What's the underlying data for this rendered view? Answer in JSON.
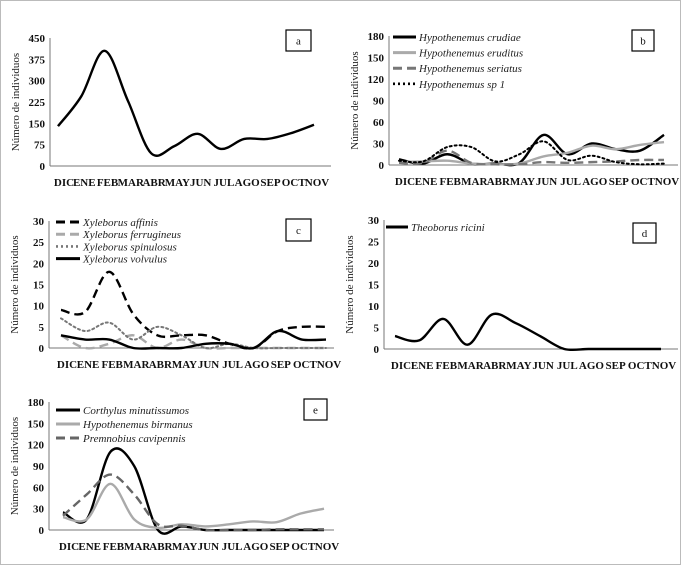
{
  "chart_data": [
    {
      "id": "a",
      "type": "line",
      "panel_label": "a",
      "ylabel": "Número de individuos",
      "ylim": [
        0,
        450
      ],
      "yticks": [
        0,
        75,
        150,
        225,
        300,
        375,
        450
      ],
      "categories": [
        "DIC",
        "ENE",
        "FEB",
        "MAR",
        "ABR",
        "MAY",
        "JUN",
        "JUL",
        "AGO",
        "SEP",
        "OCT",
        "NOV"
      ],
      "series": [
        {
          "values": [
            140,
            245,
            405,
            230,
            45,
            70,
            113,
            60,
            95,
            95,
            115,
            145
          ],
          "color": "#000000",
          "dash": "solid"
        }
      ]
    },
    {
      "id": "b",
      "type": "line",
      "panel_label": "b",
      "ylabel": "Número de individuos",
      "ylim": [
        0,
        180
      ],
      "yticks": [
        0,
        30,
        60,
        90,
        120,
        150,
        180
      ],
      "categories": [
        "DIC",
        "ENE",
        "FEB",
        "MAR",
        "ABR",
        "MAY",
        "JUN",
        "JUL",
        "AGO",
        "SEP",
        "OCT",
        "NOV"
      ],
      "series": [
        {
          "name": "Hypothenemus crudiae",
          "values": [
            8,
            2,
            15,
            2,
            2,
            3,
            42,
            15,
            30,
            22,
            20,
            42
          ],
          "color": "#000000",
          "dash": "solid"
        },
        {
          "name": "Hypothenemus eruditus",
          "values": [
            4,
            5,
            6,
            2,
            1,
            2,
            12,
            17,
            27,
            22,
            28,
            32
          ],
          "color": "#aaaaaa",
          "dash": "solid"
        },
        {
          "name": "Hypothenemus seriatus",
          "values": [
            3,
            3,
            20,
            3,
            1,
            1,
            4,
            3,
            4,
            5,
            7,
            7
          ],
          "color": "#777777",
          "dash": "dashed"
        },
        {
          "name": "Hypothenemus sp 1",
          "values": [
            6,
            5,
            25,
            25,
            5,
            15,
            33,
            7,
            13,
            4,
            1,
            2
          ],
          "color": "#000000",
          "dash": "dotted"
        }
      ]
    },
    {
      "id": "c",
      "type": "line",
      "panel_label": "c",
      "ylabel": "Número de individuos",
      "ylim": [
        0,
        30
      ],
      "yticks": [
        0,
        5,
        10,
        15,
        20,
        25,
        30
      ],
      "categories": [
        "DIC",
        "ENE",
        "FEB",
        "MAR",
        "ABR",
        "MAY",
        "JUN",
        "JUL",
        "AGO",
        "SEP",
        "OCT",
        "NOV"
      ],
      "series": [
        {
          "name": "Xyleborus affinis",
          "values": [
            9,
            8.5,
            18,
            8,
            3,
            3,
            3,
            1,
            0,
            4,
            5,
            5
          ],
          "color": "#000000",
          "dash": "dashed"
        },
        {
          "name": "Xyleborus ferrugineus",
          "values": [
            3,
            0,
            1,
            3,
            0,
            2,
            0,
            0,
            0,
            0,
            0,
            0
          ],
          "color": "#aaaaaa",
          "dash": "dashed"
        },
        {
          "name": "Xyleborus spinulosus",
          "values": [
            7,
            4,
            6,
            2,
            5,
            3,
            0,
            1,
            0,
            0,
            0,
            0
          ],
          "color": "#777777",
          "dash": "dotted"
        },
        {
          "name": "Xyleborus volvulus",
          "values": [
            3,
            2,
            2,
            0,
            0,
            0,
            1,
            1,
            0,
            4,
            2,
            2
          ],
          "color": "#000000",
          "dash": "solid"
        }
      ]
    },
    {
      "id": "d",
      "type": "line",
      "panel_label": "d",
      "ylabel": "Número de individuos",
      "ylim": [
        0,
        30
      ],
      "yticks": [
        0,
        5,
        10,
        15,
        20,
        25,
        30
      ],
      "categories": [
        "DIC",
        "ENE",
        "FEB",
        "MAR",
        "ABR",
        "MAY",
        "JUN",
        "JUL",
        "AGO",
        "SEP",
        "OCT",
        "NOV"
      ],
      "series": [
        {
          "name": "Theoborus ricini",
          "values": [
            3,
            2,
            7,
            1,
            8,
            6,
            3,
            0,
            0,
            0,
            0,
            0
          ],
          "color": "#000000",
          "dash": "solid"
        }
      ]
    },
    {
      "id": "e",
      "type": "line",
      "panel_label": "e",
      "ylabel": "Número de individuos",
      "ylim": [
        0,
        180
      ],
      "yticks": [
        0,
        30,
        60,
        90,
        120,
        150,
        180
      ],
      "categories": [
        "DIC",
        "ENE",
        "FEB",
        "MAR",
        "ABR",
        "MAY",
        "JUN",
        "JUL",
        "AGO",
        "SEP",
        "OCT",
        "NOV"
      ],
      "series": [
        {
          "name": "Corthylus minutissumos",
          "values": [
            25,
            15,
            110,
            90,
            0,
            5,
            0,
            0,
            0,
            0,
            0,
            0
          ],
          "color": "#000000",
          "dash": "solid"
        },
        {
          "name": "Hypothenemus birmanus",
          "values": [
            18,
            15,
            65,
            15,
            3,
            8,
            5,
            8,
            12,
            11,
            23,
            30
          ],
          "color": "#aaaaaa",
          "dash": "solid"
        },
        {
          "name": "Premnobius cavipennis",
          "values": [
            20,
            50,
            78,
            50,
            8,
            6,
            0,
            0,
            0,
            1,
            1,
            1
          ],
          "color": "#666666",
          "dash": "dashed"
        }
      ]
    }
  ]
}
